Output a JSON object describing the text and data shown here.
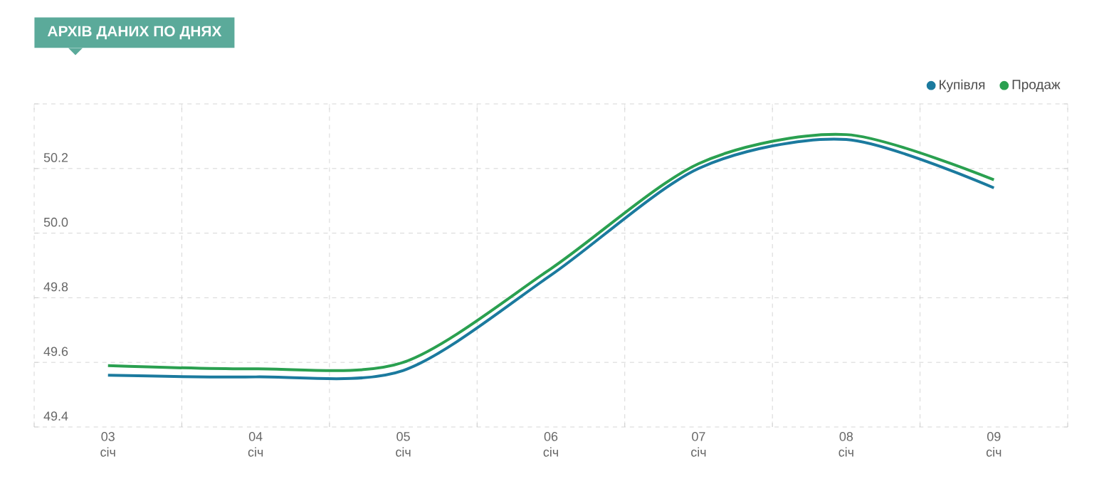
{
  "chart_data": {
    "type": "line",
    "title": "АРХІВ ДАНИХ ПО ДНЯХ",
    "categories": [
      "03 січ",
      "04 січ",
      "05 січ",
      "06 січ",
      "07 січ",
      "08 січ",
      "09 січ"
    ],
    "ylim": [
      49.4,
      50.4
    ],
    "yticks": [
      49.4,
      49.6,
      49.8,
      {
        "value": 50.0,
        "label": "50.0"
      },
      50.2,
      {
        "value": 50.4,
        "label": null
      }
    ],
    "series": [
      {
        "name": "Купівля",
        "color": "#1b7a9e",
        "values": [
          49.56,
          49.555,
          49.575,
          49.87,
          50.2,
          50.29,
          50.14
        ]
      },
      {
        "name": "Продаж",
        "color": "#2aa050",
        "values": [
          49.59,
          49.58,
          49.6,
          49.89,
          50.215,
          50.305,
          50.165
        ]
      }
    ],
    "grid": true,
    "legend": "top right",
    "marker": "none",
    "line_style": "solid"
  }
}
